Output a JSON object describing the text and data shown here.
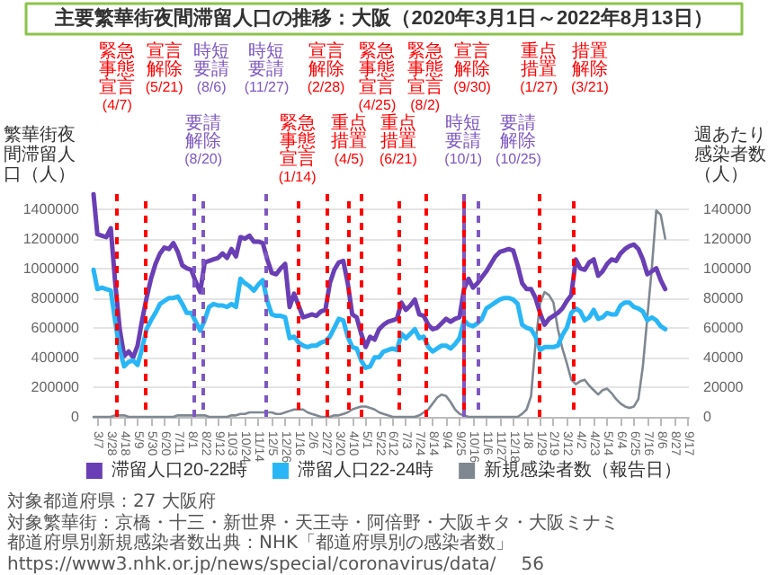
{
  "chart_data": {
    "type": "line",
    "title": "主要繁華街夜間滞留人口の推移：大阪（2020年3月1日～2022年8月13日）",
    "ylabel": "繁華街夜間滞留人口（人）",
    "y2label": "週あたり感染者数（人）",
    "x": [
      "2020-03-01",
      "2020-03-07",
      "2020-03-14",
      "2020-03-21",
      "2020-03-28",
      "2020-04-04",
      "2020-04-11",
      "2020-04-18",
      "2020-04-25",
      "2020-05-02",
      "2020-05-09",
      "2020-05-16",
      "2020-05-23",
      "2020-05-30",
      "2020-06-06",
      "2020-06-13",
      "2020-06-20",
      "2020-06-27",
      "2020-07-04",
      "2020-07-11",
      "2020-07-18",
      "2020-07-25",
      "2020-08-01",
      "2020-08-08",
      "2020-08-15",
      "2020-08-22",
      "2020-08-29",
      "2020-09-05",
      "2020-09-12",
      "2020-09-19",
      "2020-09-26",
      "2020-10-03",
      "2020-10-10",
      "2020-10-17",
      "2020-10-24",
      "2020-10-31",
      "2020-11-07",
      "2020-11-14",
      "2020-11-21",
      "2020-11-28",
      "2020-12-05",
      "2020-12-12",
      "2020-12-19",
      "2020-12-26",
      "2021-01-02",
      "2021-01-09",
      "2021-01-16",
      "2021-01-23",
      "2021-01-30",
      "2021-02-06",
      "2021-02-13",
      "2021-02-20",
      "2021-02-27",
      "2021-03-06",
      "2021-03-13",
      "2021-03-20",
      "2021-03-27",
      "2021-04-03",
      "2021-04-10",
      "2021-04-17",
      "2021-04-24",
      "2021-05-01",
      "2021-05-08",
      "2021-05-15",
      "2021-05-22",
      "2021-05-29",
      "2021-06-05",
      "2021-06-12",
      "2021-06-19",
      "2021-06-26",
      "2021-07-03",
      "2021-07-10",
      "2021-07-17",
      "2021-07-24",
      "2021-07-31",
      "2021-08-07",
      "2021-08-14",
      "2021-08-21",
      "2021-08-28",
      "2021-09-04",
      "2021-09-11",
      "2021-09-18",
      "2021-09-25",
      "2021-10-02",
      "2021-10-09",
      "2021-10-16",
      "2021-10-23",
      "2021-10-30",
      "2021-11-06",
      "2021-11-13",
      "2021-11-20",
      "2021-11-27",
      "2021-12-04",
      "2021-12-11",
      "2021-12-18",
      "2021-12-25",
      "2022-01-01",
      "2022-01-08",
      "2022-01-15",
      "2022-01-22",
      "2022-01-29",
      "2022-02-05",
      "2022-02-12",
      "2022-02-19",
      "2022-02-26",
      "2022-03-05",
      "2022-03-12",
      "2022-03-19",
      "2022-03-26",
      "2022-04-02",
      "2022-04-09",
      "2022-04-16",
      "2022-04-23",
      "2022-04-30",
      "2022-05-07",
      "2022-05-14",
      "2022-05-21",
      "2022-05-28",
      "2022-06-04",
      "2022-06-11",
      "2022-06-18",
      "2022-06-25",
      "2022-07-02",
      "2022-07-09",
      "2022-07-16",
      "2022-07-23",
      "2022-07-30",
      "2022-08-06",
      "2022-08-13"
    ],
    "series": [
      {
        "name": "滞留人口20-22時",
        "color": "#6a3fb5",
        "values": [
          1500000,
          1230000,
          1220000,
          1210000,
          1270000,
          900000,
          590000,
          410000,
          440000,
          400000,
          480000,
          650000,
          800000,
          930000,
          1030000,
          1100000,
          1140000,
          1130000,
          1170000,
          1110000,
          1020000,
          1000000,
          990000,
          910000,
          840000,
          1040000,
          1050000,
          1060000,
          1070000,
          1100000,
          1070000,
          1130000,
          1080000,
          1210000,
          1200000,
          1220000,
          1180000,
          1180000,
          1170000,
          1060000,
          970000,
          960000,
          1000000,
          1030000,
          740000,
          830000,
          750000,
          670000,
          680000,
          690000,
          680000,
          710000,
          720000,
          900000,
          990000,
          1040000,
          1050000,
          900000,
          690000,
          670000,
          560000,
          470000,
          540000,
          520000,
          590000,
          620000,
          640000,
          650000,
          660000,
          770000,
          720000,
          750000,
          790000,
          690000,
          680000,
          620000,
          590000,
          600000,
          630000,
          660000,
          640000,
          660000,
          670000,
          860000,
          930000,
          870000,
          900000,
          940000,
          980000,
          1030000,
          1080000,
          1110000,
          1120000,
          1130000,
          1120000,
          1020000,
          900000,
          860000,
          860000,
          800000,
          700000,
          620000,
          660000,
          680000,
          700000,
          730000,
          780000,
          820000,
          1060000,
          1000000,
          990000,
          1040000,
          1060000,
          950000,
          980000,
          1030000,
          1060000,
          1050000,
          1100000,
          1130000,
          1150000,
          1160000,
          1130000,
          1060000,
          960000,
          980000,
          1000000,
          920000,
          860000
        ]
      },
      {
        "name": "滞留人口22-24時",
        "color": "#29b6f6",
        "values": [
          990000,
          860000,
          870000,
          860000,
          850000,
          640000,
          450000,
          340000,
          370000,
          380000,
          350000,
          460000,
          590000,
          650000,
          700000,
          760000,
          780000,
          800000,
          800000,
          810000,
          760000,
          700000,
          700000,
          640000,
          580000,
          650000,
          740000,
          760000,
          750000,
          750000,
          740000,
          760000,
          740000,
          930000,
          900000,
          880000,
          850000,
          890000,
          920000,
          780000,
          690000,
          680000,
          680000,
          670000,
          530000,
          540000,
          500000,
          480000,
          470000,
          480000,
          480000,
          500000,
          510000,
          540000,
          600000,
          660000,
          650000,
          540000,
          470000,
          460000,
          380000,
          330000,
          340000,
          400000,
          400000,
          440000,
          450000,
          460000,
          450000,
          560000,
          530000,
          560000,
          590000,
          530000,
          540000,
          470000,
          440000,
          460000,
          480000,
          480000,
          460000,
          490000,
          530000,
          650000,
          620000,
          610000,
          630000,
          660000,
          730000,
          750000,
          770000,
          790000,
          800000,
          800000,
          790000,
          760000,
          620000,
          600000,
          590000,
          540000,
          450000,
          470000,
          470000,
          470000,
          480000,
          550000,
          600000,
          700000,
          730000,
          710000,
          650000,
          670000,
          720000,
          660000,
          670000,
          700000,
          690000,
          690000,
          750000,
          770000,
          770000,
          740000,
          730000,
          710000,
          650000,
          670000,
          650000,
          610000,
          590000
        ]
      },
      {
        "name": "新規感染者数（報告日）",
        "color": "#7f8891",
        "axis": "y2",
        "values": [
          0,
          0,
          0,
          0,
          0,
          1000,
          1000,
          1000,
          0,
          0,
          0,
          0,
          0,
          0,
          0,
          0,
          0,
          0,
          0,
          1000,
          1000,
          1000,
          1000,
          1000,
          1000,
          1000,
          0,
          0,
          0,
          0,
          0,
          1000,
          1000,
          2000,
          2000,
          3000,
          3000,
          3000,
          3000,
          3000,
          3000,
          2000,
          2000,
          3000,
          4000,
          5000,
          5000,
          5000,
          3000,
          2000,
          1000,
          0,
          0,
          0,
          1000,
          1000,
          2000,
          3000,
          5000,
          6000,
          7000,
          7000,
          6000,
          5000,
          3000,
          2000,
          1000,
          0,
          0,
          0,
          0,
          0,
          0,
          1000,
          3000,
          5000,
          9000,
          13000,
          15000,
          14000,
          10000,
          5000,
          2000,
          1000,
          0,
          0,
          0,
          0,
          0,
          0,
          0,
          0,
          0,
          0,
          0,
          0,
          2000,
          5000,
          14000,
          50000,
          76000,
          84000,
          82000,
          77000,
          59000,
          46000,
          36000,
          25000,
          22000,
          24000,
          25000,
          21000,
          18000,
          15000,
          18000,
          19000,
          16000,
          12000,
          9000,
          7000,
          6000,
          7000,
          12000,
          34000,
          67000,
          100000,
          139000,
          136000,
          120000
        ]
      }
    ],
    "xlim": [
      "2020-03-01",
      "2022-09-19"
    ],
    "xticks": [
      {
        "value": "2020-03-07",
        "label": "3/7"
      },
      {
        "value": "2020-03-28",
        "label": "3/28"
      },
      {
        "value": "2020-04-18",
        "label": "4/18"
      },
      {
        "value": "2020-05-09",
        "label": "5/9"
      },
      {
        "value": "2020-05-30",
        "label": "5/30"
      },
      {
        "value": "2020-06-20",
        "label": "6/20"
      },
      {
        "value": "2020-07-11",
        "label": "7/11"
      },
      {
        "value": "2020-08-01",
        "label": "8/1"
      },
      {
        "value": "2020-08-22",
        "label": "8/22"
      },
      {
        "value": "2020-09-12",
        "label": "9/12"
      },
      {
        "value": "2020-10-03",
        "label": "10/3"
      },
      {
        "value": "2020-10-24",
        "label": "10/24"
      },
      {
        "value": "2020-11-14",
        "label": "11/14"
      },
      {
        "value": "2020-12-05",
        "label": "12/5"
      },
      {
        "value": "2020-12-26",
        "label": "12/26"
      },
      {
        "value": "2021-01-16",
        "label": "1/16"
      },
      {
        "value": "2021-02-06",
        "label": "2/6"
      },
      {
        "value": "2021-02-27",
        "label": "2/27"
      },
      {
        "value": "2021-03-20",
        "label": "3/20"
      },
      {
        "value": "2021-04-10",
        "label": "4/10"
      },
      {
        "value": "2021-05-01",
        "label": "5/1"
      },
      {
        "value": "2021-05-22",
        "label": "5/22"
      },
      {
        "value": "2021-06-12",
        "label": "6/12"
      },
      {
        "value": "2021-07-03",
        "label": "7/3"
      },
      {
        "value": "2021-07-24",
        "label": "7/24"
      },
      {
        "value": "2021-08-14",
        "label": "8/14"
      },
      {
        "value": "2021-09-04",
        "label": "9/4"
      },
      {
        "value": "2021-09-25",
        "label": "9/25"
      },
      {
        "value": "2021-10-16",
        "label": "10/16"
      },
      {
        "value": "2021-11-06",
        "label": "11/6"
      },
      {
        "value": "2021-11-27",
        "label": "11/27"
      },
      {
        "value": "2021-12-18",
        "label": "12/18"
      },
      {
        "value": "2022-01-08",
        "label": "1/8"
      },
      {
        "value": "2022-01-29",
        "label": "1/29"
      },
      {
        "value": "2022-02-19",
        "label": "2/19"
      },
      {
        "value": "2022-03-12",
        "label": "3/12"
      },
      {
        "value": "2022-04-02",
        "label": "4/2"
      },
      {
        "value": "2022-04-23",
        "label": "4/23"
      },
      {
        "value": "2022-05-14",
        "label": "5/14"
      },
      {
        "value": "2022-06-04",
        "label": "6/4"
      },
      {
        "value": "2022-06-25",
        "label": "6/25"
      },
      {
        "value": "2022-07-16",
        "label": "7/16"
      },
      {
        "value": "2022-08-06",
        "label": "8/6"
      },
      {
        "value": "2022-08-27",
        "label": "8/27"
      },
      {
        "value": "2022-09-17",
        "label": "9/17"
      }
    ],
    "ylim": [
      0,
      1500000
    ],
    "yticks": [
      0,
      200000,
      400000,
      600000,
      800000,
      1000000,
      1200000,
      1400000
    ],
    "y2lim": [
      0,
      150000
    ],
    "y2ticks": [
      0,
      20000,
      40000,
      60000,
      80000,
      100000,
      120000,
      140000
    ],
    "ref_lines": [
      {
        "axis": "x",
        "value": "2020-04-07",
        "label": "緊急事態宣言(4/7)",
        "color": "#ff0000",
        "line_style": "dashed"
      },
      {
        "axis": "x",
        "value": "2020-05-21",
        "label": "宣言解除(5/21)",
        "color": "#ff0000",
        "line_style": "dashed"
      },
      {
        "axis": "x",
        "value": "2020-08-06",
        "label": "時短要請(8/6)",
        "color": "#7e57c2",
        "line_style": "dashed"
      },
      {
        "axis": "x",
        "value": "2020-08-20",
        "label": "要請解除(8/20)",
        "color": "#7e57c2",
        "line_style": "dashed"
      },
      {
        "axis": "x",
        "value": "2020-11-27",
        "label": "時短要請(11/27)",
        "color": "#7e57c2",
        "line_style": "dashed"
      },
      {
        "axis": "x",
        "value": "2021-01-14",
        "label": "緊急事態宣言(1/14)",
        "color": "#ff0000",
        "line_style": "dashed"
      },
      {
        "axis": "x",
        "value": "2021-02-28",
        "label": "宣言解除(2/28)",
        "color": "#ff0000",
        "line_style": "dashed"
      },
      {
        "axis": "x",
        "value": "2021-04-05",
        "label": "重点措置(4/5)",
        "color": "#ff0000",
        "line_style": "dashed"
      },
      {
        "axis": "x",
        "value": "2021-04-25",
        "label": "緊急事態宣言(4/25)",
        "color": "#ff0000",
        "line_style": "dashed"
      },
      {
        "axis": "x",
        "value": "2021-06-21",
        "label": "重点措置(6/21)",
        "color": "#ff0000",
        "line_style": "dashed"
      },
      {
        "axis": "x",
        "value": "2021-08-02",
        "label": "緊急事態宣言(8/2)",
        "color": "#ff0000",
        "line_style": "dashed"
      },
      {
        "axis": "x",
        "value": "2021-09-30",
        "label": "宣言解除(9/30)",
        "color": "#ff0000",
        "line_style": "dashed"
      },
      {
        "axis": "x",
        "value": "2021-10-01",
        "label": "時短要請(10/1)",
        "color": "#7e57c2",
        "line_style": "dashed"
      },
      {
        "axis": "x",
        "value": "2021-10-25",
        "label": "要請解除(10/25)",
        "color": "#7e57c2",
        "line_style": "dashed"
      },
      {
        "axis": "x",
        "value": "2022-01-27",
        "label": "重点措置(1/27)",
        "color": "#ff0000",
        "line_style": "dashed"
      },
      {
        "axis": "x",
        "value": "2022-03-21",
        "label": "措置解除(3/21)",
        "color": "#ff0000",
        "line_style": "dashed"
      }
    ],
    "annotations": [
      "対象都道府県：27 大阪府",
      "対象繁華街：京橋・十三・新世界・天王寺・阿倍野・大阪キタ・大阪ミナミ",
      "都道府県別新規感染者数出典：NHK「都道府県別の感染者数」",
      "https://www3.nhk.or.jp/news/special/coronavirus/data/",
      "56"
    ],
    "grid": "y",
    "legend": "bottom",
    "marker": "none",
    "line_style": "solid"
  }
}
